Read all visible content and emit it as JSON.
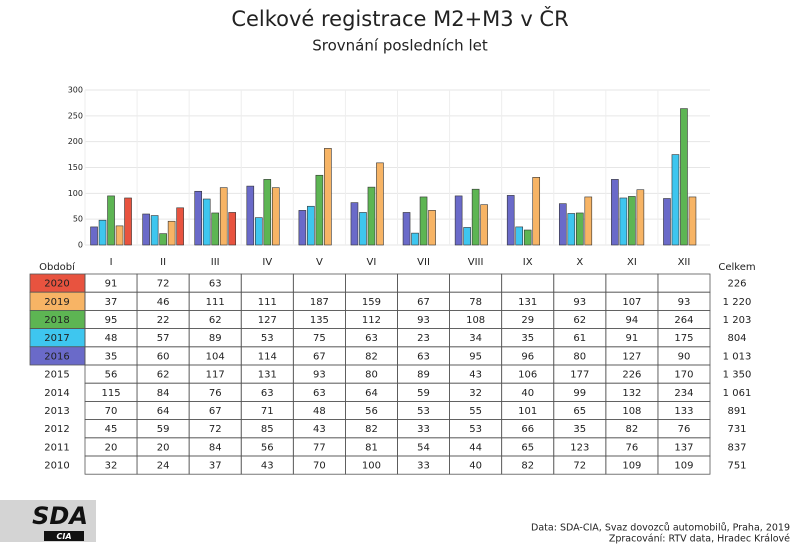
{
  "chart_data": {
    "type": "bar",
    "title": "Celkové registrace M2+M3 v ČR",
    "subtitle": "Srovnání posledních let",
    "categories": [
      "I",
      "II",
      "III",
      "IV",
      "V",
      "VI",
      "VII",
      "VIII",
      "IX",
      "X",
      "XI",
      "XII"
    ],
    "ylim": [
      0,
      300
    ],
    "yticks": [
      0,
      50,
      100,
      150,
      200,
      250,
      300
    ],
    "grid": true,
    "period_label": "Období",
    "total_label": "Celkem",
    "series": [
      {
        "name": "2020",
        "color": "#e8533f",
        "values": [
          91,
          72,
          63,
          null,
          null,
          null,
          null,
          null,
          null,
          null,
          null,
          null
        ],
        "total": "226"
      },
      {
        "name": "2019",
        "color": "#f7b465",
        "values": [
          37,
          46,
          111,
          111,
          187,
          159,
          67,
          78,
          131,
          93,
          107,
          93
        ],
        "total": "1 220"
      },
      {
        "name": "2018",
        "color": "#5db553",
        "values": [
          95,
          22,
          62,
          127,
          135,
          112,
          93,
          108,
          29,
          62,
          94,
          264
        ],
        "total": "1 203"
      },
      {
        "name": "2017",
        "color": "#3ec6ef",
        "values": [
          48,
          57,
          89,
          53,
          75,
          63,
          23,
          34,
          35,
          61,
          91,
          175
        ],
        "total": "804"
      },
      {
        "name": "2016",
        "color": "#6a6ac9",
        "values": [
          35,
          60,
          104,
          114,
          67,
          82,
          63,
          95,
          96,
          80,
          127,
          90
        ],
        "total": "1 013"
      },
      {
        "name": "2015",
        "values": [
          56,
          62,
          117,
          131,
          93,
          80,
          89,
          43,
          106,
          177,
          226,
          170
        ],
        "total": "1 350"
      },
      {
        "name": "2014",
        "values": [
          115,
          84,
          76,
          63,
          63,
          64,
          59,
          32,
          40,
          99,
          132,
          234
        ],
        "total": "1 061"
      },
      {
        "name": "2013",
        "values": [
          70,
          64,
          67,
          71,
          48,
          56,
          53,
          55,
          101,
          65,
          108,
          133
        ],
        "total": "891"
      },
      {
        "name": "2012",
        "values": [
          45,
          59,
          72,
          85,
          43,
          82,
          33,
          53,
          66,
          35,
          82,
          76
        ],
        "total": "731"
      },
      {
        "name": "2011",
        "values": [
          20,
          20,
          84,
          56,
          77,
          81,
          54,
          44,
          65,
          123,
          76,
          137
        ],
        "total": "837"
      },
      {
        "name": "2010",
        "values": [
          32,
          24,
          37,
          43,
          70,
          100,
          33,
          40,
          82,
          72,
          109,
          109
        ],
        "total": "751"
      }
    ]
  },
  "footer": {
    "source": "Data: SDA-CIA, Svaz dovozců automobilů, Praha, 2019",
    "processing": "Zpracování: RTV data, Hradec Králové"
  },
  "logo": {
    "main": "SDA",
    "sub": "CIA"
  }
}
